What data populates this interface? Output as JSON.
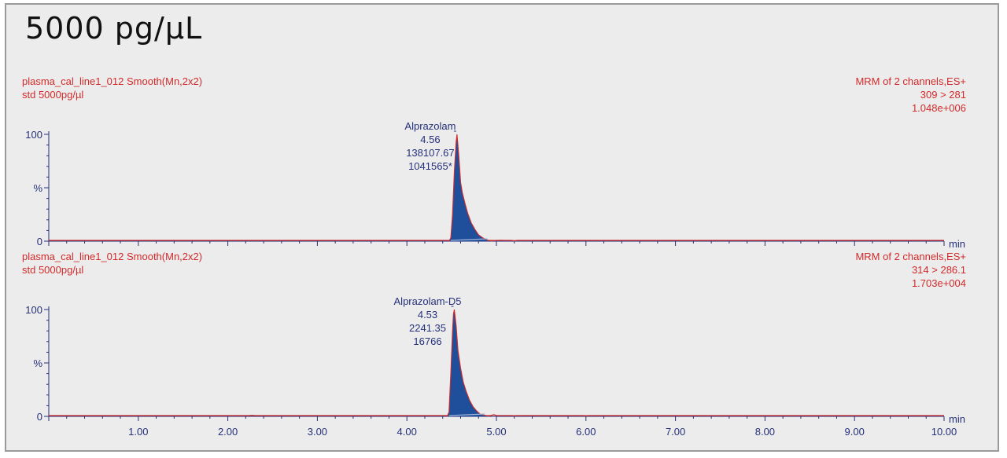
{
  "title": "5000 pg/µL",
  "chart_data": [
    {
      "type": "line",
      "sample_line": "plasma_cal_line1_012  Smooth(Mn,2x2)",
      "sample_desc": "std 5000pg/µl",
      "header_right": [
        "MRM of 2 channels,ES+",
        "309 > 281",
        "1.048e+006"
      ],
      "y_labels": [
        "100",
        "%",
        "0"
      ],
      "x_unit": "min",
      "peak": {
        "name": "Alprazolam",
        "rt": "4.56",
        "area": "138107.67",
        "height": "1041565*"
      },
      "x": [
        4.47,
        4.49,
        4.51,
        4.53,
        4.55,
        4.56,
        4.58,
        4.6,
        4.62,
        4.65,
        4.68,
        4.72,
        4.76,
        4.8,
        4.85,
        4.9,
        4.95
      ],
      "y": [
        0,
        3,
        25,
        65,
        93,
        100,
        80,
        55,
        45,
        35,
        26,
        17,
        11,
        6,
        3,
        1,
        0
      ],
      "baseline_blips": [
        [
          4.97,
          0.6
        ],
        [
          5.05,
          0.8
        ],
        [
          5.2,
          0.4
        ]
      ],
      "xlim": [
        0,
        10
      ],
      "ylim": [
        0,
        100
      ],
      "series_color": "#1f4e9b",
      "line_color": "#d22a2a"
    },
    {
      "type": "line",
      "sample_line": "plasma_cal_line1_012  Smooth(Mn,2x2)",
      "sample_desc": "std 5000pg/µl",
      "header_right": [
        "MRM of 2 channels,ES+",
        "314 > 286.1",
        "1.703e+004"
      ],
      "y_labels": [
        "100",
        "%",
        "0"
      ],
      "x_unit": "min",
      "peak": {
        "name": "Alprazolam-D5",
        "rt": "4.53",
        "area": "2241.35",
        "height": "16766"
      },
      "x": [
        4.45,
        4.47,
        4.49,
        4.51,
        4.52,
        4.53,
        4.55,
        4.57,
        4.6,
        4.63,
        4.66,
        4.7,
        4.74,
        4.78,
        4.82,
        4.87,
        4.92
      ],
      "y": [
        0,
        4,
        40,
        80,
        96,
        100,
        85,
        62,
        45,
        32,
        24,
        15,
        9,
        5,
        2,
        1,
        0
      ],
      "baseline_blips": [
        [
          2.27,
          1.0
        ],
        [
          4.97,
          1.5
        ],
        [
          5.2,
          0.6
        ],
        [
          6.0,
          0.6
        ]
      ],
      "xlim": [
        0,
        10
      ],
      "ylim": [
        0,
        100
      ],
      "series_color": "#1f4e9b",
      "line_color": "#d22a2a"
    }
  ],
  "x_axis": {
    "ticks": [
      "1.00",
      "2.00",
      "3.00",
      "4.00",
      "5.00",
      "6.00",
      "7.00",
      "8.00",
      "9.00",
      "10.00"
    ],
    "tick_values": [
      1,
      2,
      3,
      4,
      5,
      6,
      7,
      8,
      9,
      10
    ]
  }
}
